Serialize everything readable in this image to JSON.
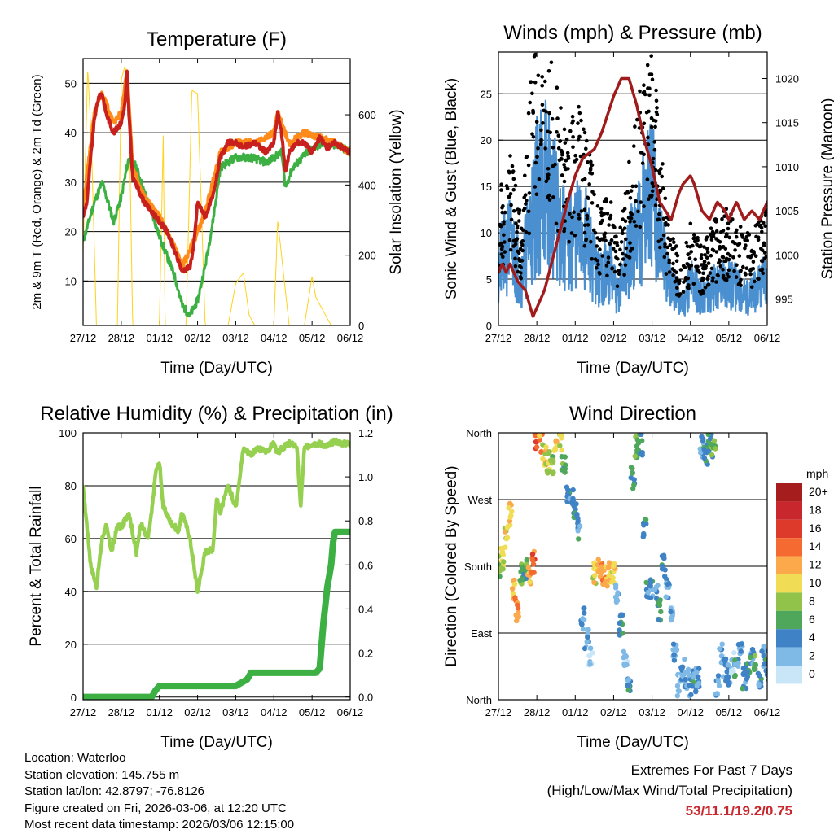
{
  "colors": {
    "temp2m": "#c8201c",
    "temp9m": "#ff8c1a",
    "dewpoint": "#3cb043",
    "solar": "#ffd21c",
    "wind": "#4a90d0",
    "gust": "#000000",
    "pressure": "#a01c1c",
    "rh": "#96d050",
    "precip": "#3cb043"
  },
  "chart_data": [
    {
      "type": "line",
      "title": "Temperature (F)",
      "xlabel": "Time (Day/UTC)",
      "ylabel": "2m & 9m T (Red, Orange) & 2m Td (Green)",
      "y2label": "Solar Insolation (Yellow)",
      "x_ticks": [
        "27/12",
        "28/12",
        "01/12",
        "02/12",
        "03/12",
        "04/12",
        "05/12",
        "06/12"
      ],
      "xlim": [
        0,
        7
      ],
      "ylim": [
        1,
        55
      ],
      "y_ticks": [
        10,
        20,
        30,
        40,
        50
      ],
      "y2lim": [
        0,
        760
      ],
      "y2_ticks": [
        0,
        200,
        400,
        600
      ],
      "series": [
        {
          "name": "2m T",
          "x": [
            0,
            0.1,
            0.2,
            0.3,
            0.4,
            0.5,
            0.6,
            0.8,
            1.0,
            1.1,
            1.15,
            1.2,
            1.3,
            1.6,
            1.8,
            2.0,
            2.2,
            2.4,
            2.6,
            2.8,
            2.9,
            3.0,
            3.2,
            3.4,
            3.6,
            3.8,
            4.0,
            4.2,
            4.5,
            4.8,
            5.0,
            5.1,
            5.2,
            5.3,
            5.4,
            5.6,
            5.8,
            6.0,
            6.2,
            6.4,
            6.6,
            6.8,
            7.0
          ],
          "y": [
            23,
            26,
            35,
            43,
            47,
            48,
            44,
            40,
            42,
            46,
            53,
            44,
            31,
            26,
            24,
            22,
            20,
            16,
            12,
            13,
            17,
            26,
            23,
            27,
            35,
            38,
            38,
            37,
            38,
            36,
            38,
            44,
            40,
            32,
            36,
            38,
            38,
            36,
            39,
            37,
            38,
            37,
            36
          ]
        },
        {
          "name": "9m T",
          "x": [
            0,
            0.3,
            0.5,
            0.8,
            1.0,
            1.15,
            1.3,
            1.6,
            2.0,
            2.4,
            2.6,
            2.9,
            3.2,
            3.6,
            4.0,
            4.5,
            5.0,
            5.1,
            5.2,
            5.4,
            5.8,
            6.2,
            6.6,
            7.0
          ],
          "y": [
            25,
            44,
            48,
            42,
            44,
            53,
            33,
            27,
            23,
            17,
            13,
            18,
            24,
            36,
            38,
            38,
            40,
            44,
            42,
            38,
            40,
            39,
            38,
            36
          ]
        },
        {
          "name": "2m Td",
          "x": [
            0,
            0.3,
            0.5,
            0.8,
            1.0,
            1.2,
            1.4,
            1.6,
            1.8,
            2.0,
            2.2,
            2.4,
            2.6,
            2.8,
            3.0,
            3.2,
            3.4,
            3.6,
            4.0,
            4.4,
            4.8,
            5.0,
            5.2,
            5.3,
            5.5,
            6.0,
            6.4,
            6.8,
            7.0
          ],
          "y": [
            18,
            26,
            30,
            22,
            27,
            35,
            33,
            28,
            24,
            19,
            15,
            11,
            5,
            3,
            6,
            13,
            22,
            33,
            35,
            35,
            34,
            35,
            36,
            29,
            33,
            37,
            38,
            37,
            36
          ]
        },
        {
          "name": "Solar Insolation",
          "axis": "y2",
          "x": [
            0,
            0.12,
            0.22,
            0.35,
            0.6,
            0.9,
            1.0,
            1.1,
            1.2,
            1.3,
            1.35,
            1.55,
            1.8,
            2.0,
            2.1,
            2.15,
            2.3,
            2.5,
            2.7,
            2.85,
            3.0,
            3.2,
            3.35,
            3.5,
            3.8,
            4.0,
            4.2,
            4.35,
            4.5,
            4.7,
            4.9,
            5.0,
            5.1,
            5.25,
            5.4,
            5.6,
            5.8,
            6.0,
            6.1,
            6.2,
            6.35,
            6.5,
            7.0
          ],
          "y": [
            200,
            735,
            520,
            0,
            0,
            0,
            700,
            740,
            650,
            0,
            0,
            0,
            0,
            0,
            540,
            0,
            0,
            0,
            0,
            670,
            660,
            0,
            0,
            0,
            0,
            120,
            150,
            30,
            0,
            0,
            0,
            0,
            300,
            150,
            0,
            0,
            0,
            140,
            80,
            60,
            30,
            0,
            0
          ]
        }
      ]
    },
    {
      "type": "scatter",
      "title": "Winds (mph) & Pressure (mb)",
      "xlabel": "Time (Day/UTC)",
      "ylabel": "Sonic Wind & Gust (Blue, Black)",
      "y2label": "Station Pressure (Maroon)",
      "x_ticks": [
        "27/12",
        "28/12",
        "01/12",
        "02/12",
        "03/12",
        "04/12",
        "05/12",
        "06/12"
      ],
      "xlim": [
        0,
        7
      ],
      "ylim": [
        0,
        29.5
      ],
      "y_ticks": [
        0,
        5,
        10,
        15,
        20,
        25
      ],
      "y2lim": [
        992,
        1023
      ],
      "y2_ticks": [
        995,
        1000,
        1005,
        1010,
        1015,
        1020
      ],
      "series": [
        {
          "name": "Sonic Wind",
          "x": [
            0,
            0.3,
            0.6,
            0.8,
            1.0,
            1.2,
            1.5,
            1.8,
            2.0,
            2.3,
            2.6,
            2.9,
            3.1,
            3.3,
            3.6,
            3.8,
            4.0,
            4.2,
            4.5,
            4.8,
            5.0,
            5.3,
            5.6,
            5.9,
            6.2,
            6.5,
            6.8,
            7.0
          ],
          "y": [
            6,
            9,
            5,
            10,
            14,
            16,
            12,
            8,
            10,
            9,
            5,
            6,
            3,
            6,
            10,
            13,
            14,
            9,
            4,
            2,
            5,
            3,
            4,
            5,
            4,
            3,
            4,
            5
          ]
        },
        {
          "name": "Gust",
          "x": [
            0,
            0.3,
            0.6,
            0.8,
            1.0,
            1.2,
            1.5,
            1.8,
            2.0,
            2.3,
            2.6,
            2.9,
            3.1,
            3.3,
            3.6,
            3.8,
            4.0,
            4.2,
            4.5,
            4.8,
            5.0,
            5.3,
            5.6,
            5.9,
            6.2,
            6.5,
            6.8,
            7.0
          ],
          "y": [
            10,
            13,
            8,
            18,
            23,
            26,
            19,
            14,
            17,
            15,
            9,
            10,
            6,
            10,
            17,
            20,
            22,
            14,
            7,
            5,
            8,
            6,
            8,
            9,
            8,
            7,
            8,
            9
          ]
        },
        {
          "name": "Station Pressure",
          "axis": "y2",
          "x": [
            0,
            0.1,
            0.2,
            0.3,
            0.5,
            0.7,
            0.9,
            1.0,
            1.2,
            1.5,
            1.8,
            2.0,
            2.2,
            2.5,
            2.7,
            3.0,
            3.2,
            3.4,
            3.6,
            3.8,
            4.0,
            4.2,
            4.5,
            4.7,
            4.8,
            5.0,
            5.1,
            5.3,
            5.5,
            5.7,
            5.9,
            6.0,
            6.2,
            6.4,
            6.6,
            6.8,
            7.0
          ],
          "y": [
            998,
            999,
            998,
            999,
            997,
            996,
            993,
            994,
            996,
            1001,
            1006,
            1009,
            1011,
            1012,
            1014,
            1018,
            1020,
            1020,
            1017,
            1013,
            1010,
            1006,
            1004,
            1007,
            1008,
            1009,
            1008,
            1005,
            1004,
            1006,
            1005,
            1004,
            1006,
            1004,
            1005,
            1004,
            1006
          ]
        }
      ]
    },
    {
      "type": "line",
      "title": "Relative Humidity (%) & Precipitation (in)",
      "xlabel": "Time (Day/UTC)",
      "ylabel": "Percent & Total Rainfall",
      "x_ticks": [
        "27/12",
        "28/12",
        "01/12",
        "02/12",
        "03/12",
        "04/12",
        "05/12",
        "06/12"
      ],
      "xlim": [
        0,
        7
      ],
      "ylim": [
        -1,
        100
      ],
      "y_ticks": [
        0,
        20,
        40,
        60,
        80,
        100
      ],
      "y2lim": [
        -0.0125,
        1.2
      ],
      "y2_ticks": [
        0.0,
        0.2,
        0.4,
        0.6,
        0.8,
        1.0,
        1.2
      ],
      "y2_tick_labels": [
        "0.0",
        "0.2",
        "0.4",
        "0.6",
        "0.8",
        "1.0",
        "1.2"
      ],
      "series": [
        {
          "name": "Relative Humidity",
          "x": [
            0,
            0.1,
            0.2,
            0.35,
            0.5,
            0.6,
            0.75,
            0.9,
            1.0,
            1.2,
            1.4,
            1.5,
            1.7,
            1.8,
            1.9,
            2.0,
            2.1,
            2.3,
            2.5,
            2.6,
            2.8,
            3.0,
            3.2,
            3.4,
            3.5,
            3.6,
            3.8,
            4.0,
            4.2,
            4.4,
            4.6,
            4.8,
            5.0,
            5.1,
            5.2,
            5.4,
            5.6,
            5.7,
            5.8,
            6.0,
            6.2,
            6.4,
            6.6,
            6.8,
            7.0
          ],
          "y": [
            79,
            65,
            50,
            42,
            60,
            65,
            55,
            65,
            64,
            70,
            54,
            66,
            60,
            70,
            85,
            89,
            72,
            66,
            63,
            70,
            60,
            40,
            55,
            56,
            75,
            70,
            80,
            72,
            94,
            92,
            94,
            93,
            96,
            92,
            94,
            96,
            95,
            72,
            94,
            96,
            96,
            95,
            97,
            96,
            96
          ]
        },
        {
          "name": "Total Precipitation",
          "axis": "y2",
          "x": [
            0,
            1.5,
            1.8,
            1.9,
            2.0,
            3.0,
            4.0,
            4.3,
            4.4,
            6.0,
            6.1,
            6.2,
            6.3,
            6.4,
            6.5,
            6.55,
            6.6,
            7.0
          ],
          "y": [
            0,
            0,
            0,
            0.03,
            0.05,
            0.05,
            0.05,
            0.08,
            0.11,
            0.11,
            0.11,
            0.13,
            0.34,
            0.5,
            0.6,
            0.7,
            0.75,
            0.75
          ]
        }
      ]
    },
    {
      "type": "scatter",
      "title": "Wind Direction",
      "xlabel": "Time (Day/UTC)",
      "ylabel": "Direction (Colored By Speed)",
      "x_ticks": [
        "27/12",
        "28/12",
        "01/12",
        "02/12",
        "03/12",
        "04/12",
        "05/12",
        "06/12"
      ],
      "xlim": [
        0,
        7
      ],
      "ylim": [
        0,
        360
      ],
      "y_ticks": [
        0,
        90,
        180,
        270,
        360
      ],
      "y_tick_labels": [
        "North",
        "East",
        "South",
        "West",
        "North"
      ],
      "colorbar": {
        "title": "mph",
        "labels": [
          "20+",
          "18",
          "16",
          "14",
          "12",
          "10",
          "8",
          "6",
          "4",
          "2",
          "0"
        ],
        "colors": [
          "#a51d1d",
          "#c8282d",
          "#dd3a2c",
          "#f46a30",
          "#fba94a",
          "#f0dd55",
          "#91c34a",
          "#4ea75a",
          "#3f83c6",
          "#7fb9e6",
          "#c8e6f8"
        ]
      },
      "series": [
        {
          "name": "Direction",
          "x": [
            0.0,
            0.1,
            0.2,
            0.3,
            0.4,
            0.5,
            0.6,
            0.7,
            0.8,
            0.9,
            1.0,
            1.1,
            1.2,
            1.3,
            1.4,
            1.5,
            1.6,
            1.7,
            1.8,
            1.9,
            2.0,
            2.1,
            2.2,
            2.3,
            2.4,
            2.5,
            2.6,
            2.7,
            2.8,
            2.9,
            3.0,
            3.1,
            3.2,
            3.3,
            3.4,
            3.5,
            3.6,
            3.7,
            3.8,
            3.9,
            4.0,
            4.1,
            4.2,
            4.3,
            4.4,
            4.5,
            4.6,
            4.7,
            4.8,
            4.9,
            5.0,
            5.1,
            5.2,
            5.3,
            5.4,
            5.5,
            5.6,
            5.7,
            5.8,
            5.9,
            6.0,
            6.1,
            6.2,
            6.3,
            6.4,
            6.5,
            6.6,
            6.7,
            6.8,
            6.9,
            7.0
          ],
          "y": [
            180,
            190,
            220,
            250,
            150,
            120,
            170,
            175,
            170,
            185,
            350,
            345,
            330,
            320,
            315,
            345,
            350,
            320,
            280,
            270,
            260,
            230,
            110,
            80,
            60,
            170,
            175,
            170,
            168,
            172,
            170,
            140,
            100,
            60,
            20,
            300,
            340,
            345,
            230,
            150,
            150,
            140,
            120,
            180,
            150,
            120,
            60,
            20,
            40,
            30,
            20,
            25,
            30,
            340,
            330,
            350,
            340,
            20,
            60,
            40,
            35,
            50,
            40,
            70,
            30,
            40,
            60,
            45,
            30,
            60,
            40
          ],
          "speed": [
            8,
            9,
            10,
            11,
            12,
            13,
            7,
            6,
            12,
            14,
            14,
            12,
            10,
            9,
            8,
            10,
            9,
            6,
            4,
            4,
            5,
            4,
            3,
            3,
            2,
            10,
            11,
            13,
            12,
            11,
            10,
            3,
            4,
            2,
            4,
            5,
            6,
            5,
            4,
            4,
            4,
            3,
            6,
            5,
            3,
            2,
            3,
            2,
            3,
            2,
            3,
            4,
            2,
            3,
            4,
            5,
            6,
            3,
            2,
            4,
            3,
            2,
            4,
            3,
            4,
            5,
            4,
            6,
            4,
            3,
            5
          ]
        }
      ]
    }
  ],
  "footer": {
    "location": "Location: Waterloo",
    "elevation": "Station elevation: 145.755 m",
    "latlon": "Station lat/lon: 42.8797; -76.8126",
    "created": "Figure created on Fri, 2026-03-06, at 12:20 UTC",
    "recent": "Most recent data timestamp: 2026/03/06 12:15:00"
  },
  "extremes": {
    "title": "Extremes For Past 7 Days",
    "subtitle": "(High/Low/Max Wind/Total Precipitation)",
    "values": "53/11.1/19.2/0.75"
  }
}
